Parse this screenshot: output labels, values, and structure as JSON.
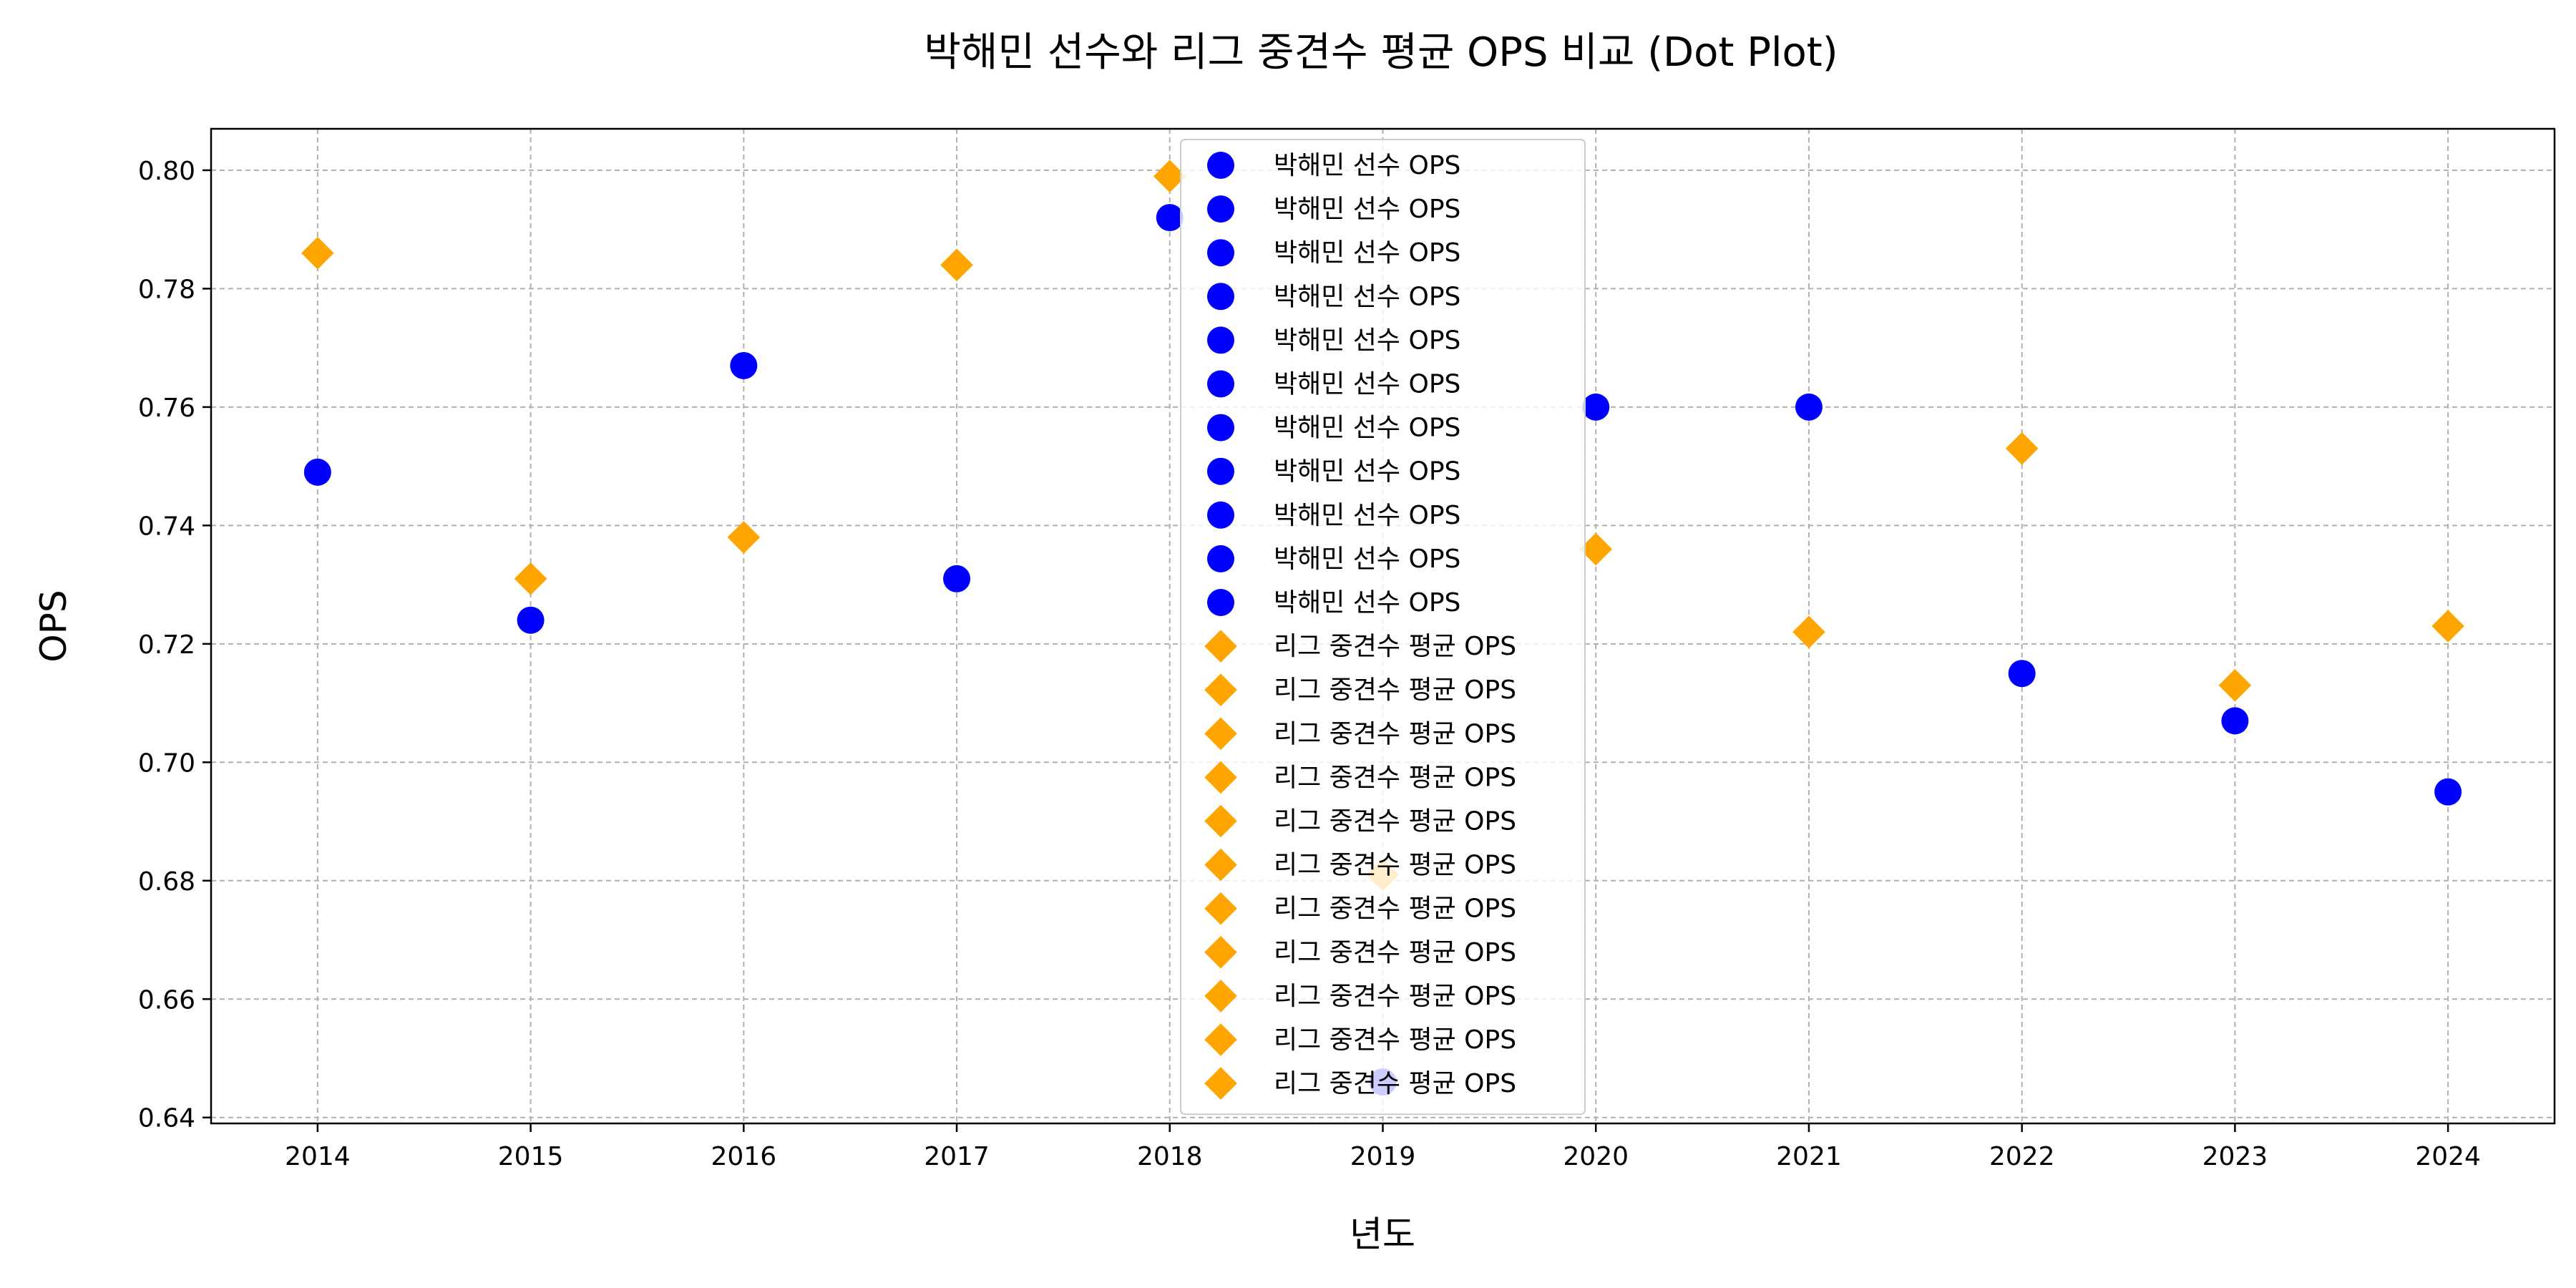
{
  "chart_data": {
    "type": "scatter",
    "title": "박해민 선수와 리그 중견수 평균 OPS 비교 (Dot Plot)",
    "xlabel": "년도",
    "ylabel": "OPS",
    "x": [
      2014,
      2015,
      2016,
      2017,
      2018,
      2019,
      2020,
      2021,
      2022,
      2023,
      2024
    ],
    "xlim": [
      2013.5,
      2024.5
    ],
    "ylim": [
      0.639,
      0.807
    ],
    "yticks": [
      "0.64",
      "0.66",
      "0.68",
      "0.70",
      "0.72",
      "0.74",
      "0.76",
      "0.78",
      "0.80"
    ],
    "grid": true,
    "legend_position": "top-center",
    "series": [
      {
        "name": "박해민 선수 OPS",
        "marker": "circle",
        "color": "#0000ff",
        "values": [
          0.749,
          0.724,
          0.767,
          0.731,
          0.792,
          0.646,
          0.76,
          0.76,
          0.715,
          0.707,
          0.695
        ]
      },
      {
        "name": "리그 중견수 평균 OPS",
        "marker": "diamond",
        "color": "#ffa500",
        "values": [
          0.786,
          0.731,
          0.738,
          0.784,
          0.799,
          0.681,
          0.736,
          0.722,
          0.753,
          0.713,
          0.723
        ]
      }
    ]
  }
}
